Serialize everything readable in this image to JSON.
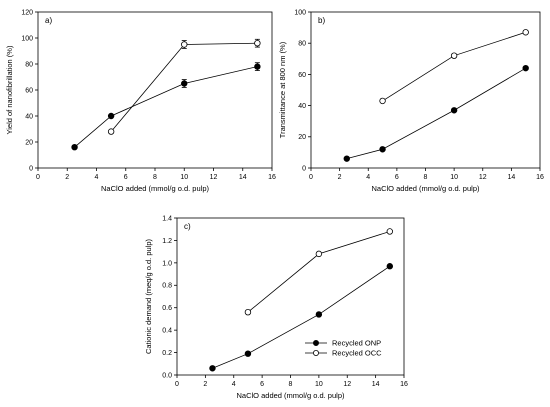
{
  "chart_data": [
    {
      "type": "line",
      "panel_label": "a)",
      "xlabel": "NaClO added (mmol/g o.d. pulp)",
      "ylabel": "Yield of nanofibrillation (%)",
      "xlim": [
        0,
        16
      ],
      "ylim": [
        0,
        120
      ],
      "xticks": [
        "0",
        "2",
        "4",
        "6",
        "8",
        "10",
        "12",
        "14",
        "16"
      ],
      "yticks": [
        "0",
        "20",
        "40",
        "60",
        "80",
        "100",
        "120"
      ],
      "series": [
        {
          "marker": "filled",
          "x": [
            2.5,
            5,
            10,
            15
          ],
          "y": [
            16,
            40,
            65,
            78
          ],
          "err": [
            0,
            0,
            3,
            3
          ]
        },
        {
          "marker": "open",
          "x": [
            5,
            10,
            15
          ],
          "y": [
            28,
            95,
            96
          ],
          "err": [
            0,
            3,
            3
          ]
        }
      ]
    },
    {
      "type": "line",
      "panel_label": "b)",
      "xlabel": "NaClO added (mmol/g o.d. pulp)",
      "ylabel": "Transmittance at 800 nm (%)",
      "xlim": [
        0,
        16
      ],
      "ylim": [
        0,
        100
      ],
      "xticks": [
        "0",
        "2",
        "4",
        "6",
        "8",
        "10",
        "12",
        "14",
        "16"
      ],
      "yticks": [
        "0",
        "20",
        "40",
        "60",
        "80",
        "100"
      ],
      "series": [
        {
          "marker": "filled",
          "x": [
            2.5,
            5,
            10,
            15
          ],
          "y": [
            6,
            12,
            37,
            64
          ]
        },
        {
          "marker": "open",
          "x": [
            5,
            10,
            15
          ],
          "y": [
            43,
            72,
            87
          ]
        }
      ]
    },
    {
      "type": "line",
      "panel_label": "c)",
      "xlabel": "NaClO added (mmol/g o.d. pulp)",
      "ylabel": "Cationic demand (meq/g o.d. pulp)",
      "xlim": [
        0,
        16
      ],
      "ylim": [
        0,
        1.4
      ],
      "xticks": [
        "0",
        "2",
        "4",
        "6",
        "8",
        "10",
        "12",
        "14",
        "16"
      ],
      "yticks": [
        "0.0",
        "0.2",
        "0.4",
        "0.6",
        "0.8",
        "1.0",
        "1.2",
        "1.4"
      ],
      "legend_position": "bottom-right",
      "series": [
        {
          "name": "Recycled ONP",
          "marker": "filled",
          "x": [
            2.5,
            5,
            10,
            15
          ],
          "y": [
            0.06,
            0.19,
            0.54,
            0.97
          ]
        },
        {
          "name": "Recycled OCC",
          "marker": "open",
          "x": [
            5,
            10,
            15
          ],
          "y": [
            0.56,
            1.08,
            1.28
          ]
        }
      ]
    }
  ]
}
